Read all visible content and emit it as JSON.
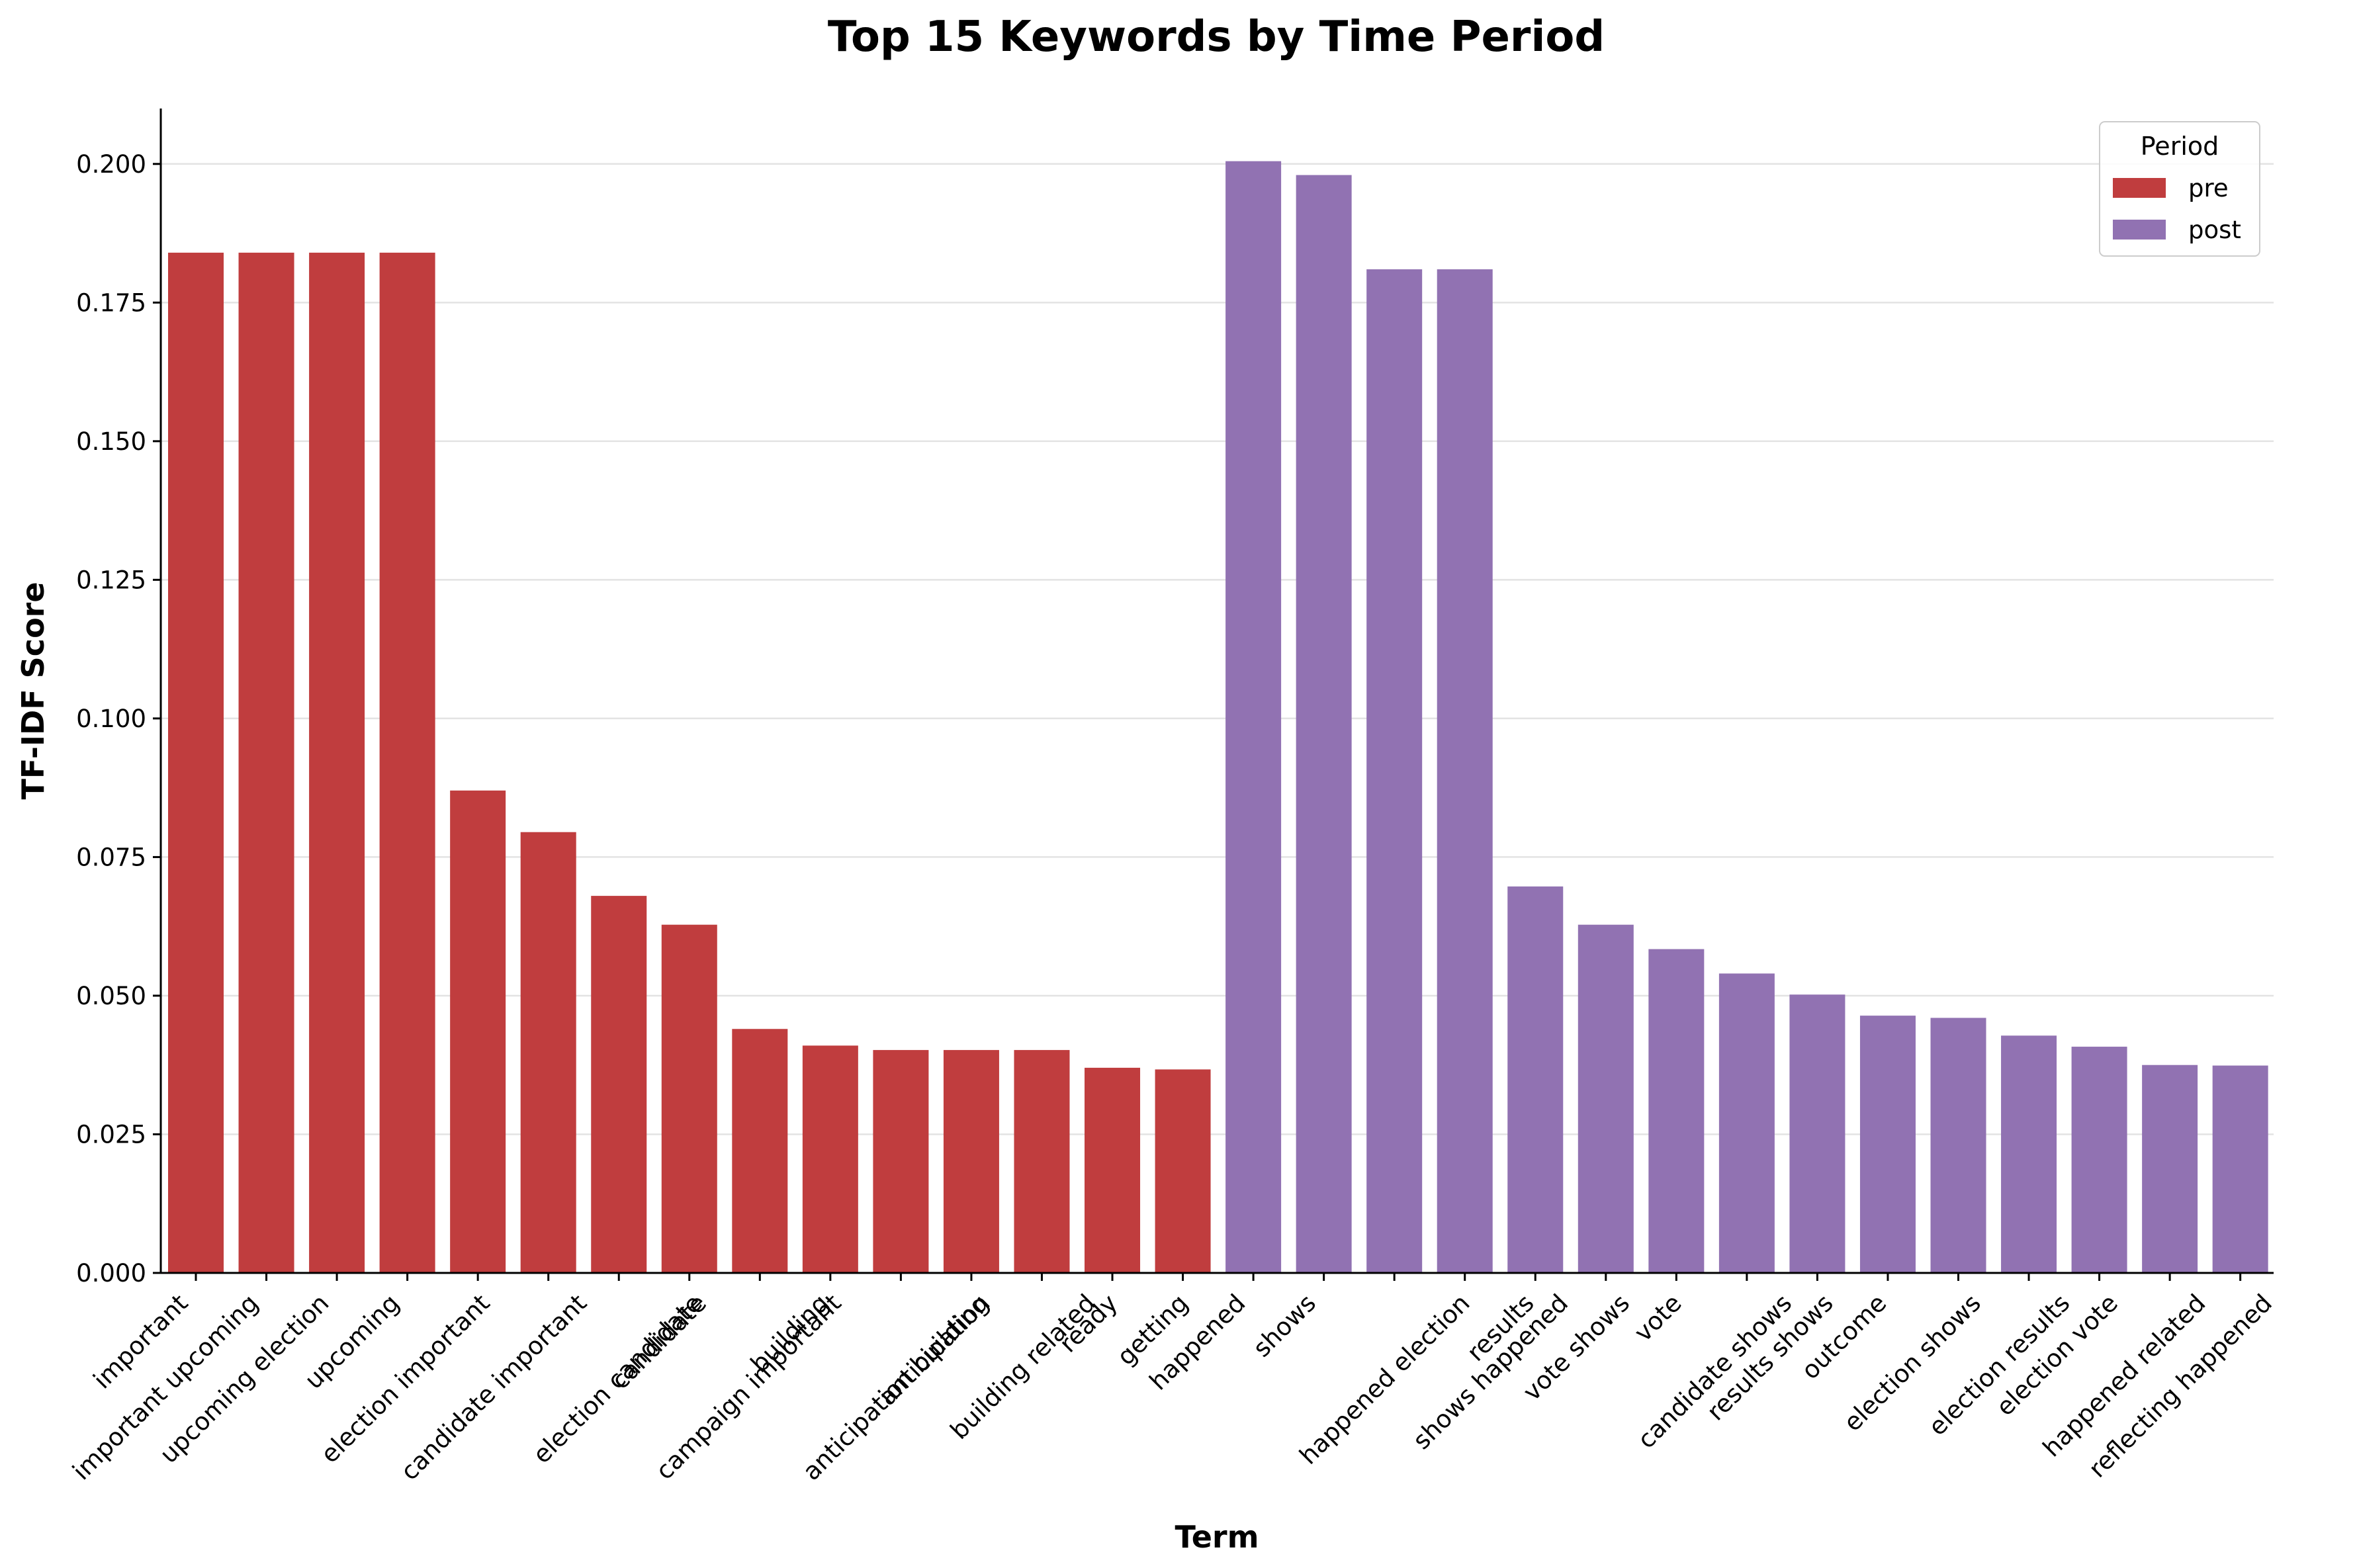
{
  "chart_data": {
    "type": "bar",
    "title": "Top 15 Keywords by Time Period",
    "xlabel": "Term",
    "ylabel": "TF-IDF Score",
    "ylim": [
      0,
      0.21
    ],
    "yticks": [
      "0.000",
      "0.025",
      "0.050",
      "0.075",
      "0.100",
      "0.125",
      "0.150",
      "0.175",
      "0.200"
    ],
    "grid": "horizontal",
    "legend": {
      "title": "Period",
      "placement": "top-right"
    },
    "colors": {
      "pre": "#c03d3e",
      "post": "#9172b2"
    },
    "categories": [
      "important",
      "important upcoming",
      "upcoming election",
      "upcoming",
      "election important",
      "candidate important",
      "election candidate",
      "candidate",
      "campaign important",
      "building",
      "anticipation building",
      "anticipation",
      "building related",
      "ready",
      "getting",
      "happened",
      "shows",
      "happened election",
      "shows happened",
      "results",
      "vote shows",
      "vote",
      "candidate shows",
      "results shows",
      "outcome",
      "election shows",
      "election results",
      "election vote",
      "happened related",
      "reflecting happened"
    ],
    "series": [
      {
        "name": "pre",
        "values": [
          0.184,
          0.184,
          0.184,
          0.184,
          0.087,
          0.0795,
          0.068,
          0.0628,
          0.044,
          0.041,
          0.0402,
          0.0402,
          0.0402,
          0.037,
          0.0367,
          null,
          null,
          null,
          null,
          null,
          null,
          null,
          null,
          null,
          null,
          null,
          null,
          null,
          null,
          null
        ]
      },
      {
        "name": "post",
        "values": [
          null,
          null,
          null,
          null,
          null,
          null,
          null,
          null,
          null,
          null,
          null,
          null,
          null,
          null,
          null,
          0.2005,
          0.198,
          0.181,
          0.181,
          0.0697,
          0.0628,
          0.0584,
          0.054,
          0.0502,
          0.0464,
          0.046,
          0.0428,
          0.0408,
          0.0375,
          0.0374
        ]
      }
    ]
  }
}
